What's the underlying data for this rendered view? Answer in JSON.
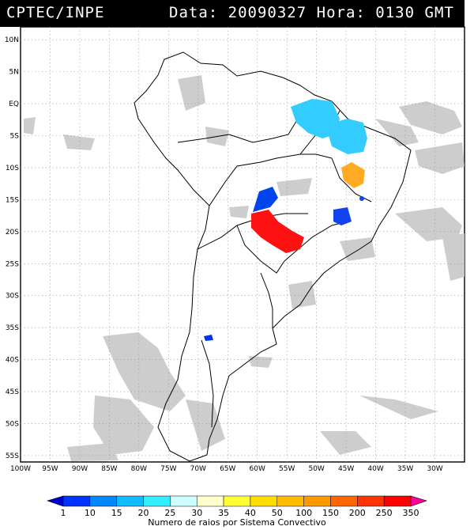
{
  "header": {
    "source": "CPTEC/INPE",
    "date_label": "Data:",
    "date_value": "20090327",
    "hour_label": "Hora:",
    "hour_value": "0130",
    "tz": "GMT"
  },
  "map": {
    "lon_min": -100,
    "lon_max": -25,
    "lat_min": -56,
    "lat_max": 12,
    "lat_ticks": [
      "10N",
      "5N",
      "EQ",
      "5S",
      "10S",
      "15S",
      "20S",
      "25S",
      "30S",
      "35S",
      "40S",
      "45S",
      "50S",
      "55S"
    ],
    "lon_ticks": [
      "100W",
      "95W",
      "90W",
      "85W",
      "80W",
      "75W",
      "70W",
      "65W",
      "60W",
      "55W",
      "50W",
      "45W",
      "40W",
      "35W",
      "30W"
    ],
    "colors": {
      "cloud": "#c8c8c8",
      "coast": "#000000",
      "grid": "#9a9a9a"
    }
  },
  "systems": [
    {
      "name": "amazon-mouth-cell",
      "class": "15-20",
      "color": "#33ccff"
    },
    {
      "name": "northeast-cell",
      "class": "15-20",
      "color": "#33ccff"
    },
    {
      "name": "bahia-cell",
      "class": "50-100",
      "color": "#ffaa22"
    },
    {
      "name": "mato-grosso-cell",
      "class": "1-10",
      "color": "#0044ee"
    },
    {
      "name": "minas-cell",
      "class": "1-10",
      "color": "#1144ee"
    },
    {
      "name": "paraguay-cell",
      "class": "250-350",
      "color": "#ff1111"
    },
    {
      "name": "chile-small-cell",
      "class": "1-10",
      "color": "#0033ee"
    }
  ],
  "legend": {
    "ticks": [
      "1",
      "10",
      "15",
      "20",
      "25",
      "30",
      "35",
      "40",
      "50",
      "100",
      "150",
      "200",
      "250",
      "350"
    ],
    "colors": [
      "#0000cc",
      "#0033ff",
      "#0088ff",
      "#11bbff",
      "#33eeff",
      "#ccffff",
      "#ffffcc",
      "#ffff33",
      "#ffdd00",
      "#ffbb00",
      "#ff9900",
      "#ff6600",
      "#ff3300",
      "#ff0000",
      "#ff0099"
    ],
    "title": "Numero de raios por Sistema Convectivo"
  }
}
